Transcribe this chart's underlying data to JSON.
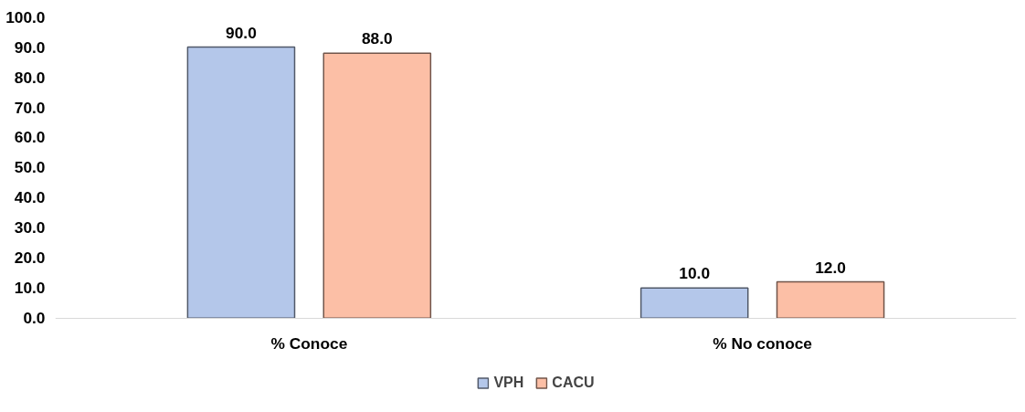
{
  "chart_data": {
    "type": "bar",
    "categories": [
      "% Conoce",
      "% No conoce"
    ],
    "series": [
      {
        "name": "VPH",
        "color": "#b4c7ea",
        "values": [
          90,
          10
        ],
        "value_labels": [
          "90.0",
          "10.0"
        ]
      },
      {
        "name": "CACU",
        "color": "#fcbfa6",
        "values": [
          88,
          12
        ],
        "value_labels": [
          "88.0",
          "12.0"
        ]
      }
    ],
    "ylim": [
      0,
      100
    ],
    "yticks": [
      {
        "value": 0,
        "label": "0.0"
      },
      {
        "value": 10,
        "label": "10.0"
      },
      {
        "value": 20,
        "label": "20.0"
      },
      {
        "value": 30,
        "label": "30.0"
      },
      {
        "value": 40,
        "label": "40.0"
      },
      {
        "value": 50,
        "label": "50.0"
      },
      {
        "value": 60,
        "label": "60.0"
      },
      {
        "value": 70,
        "label": "70.0"
      },
      {
        "value": 80,
        "label": "80.0"
      },
      {
        "value": 90,
        "label": "90.0"
      },
      {
        "value": 100,
        "label": "100.0"
      }
    ],
    "grid": false,
    "legend": "bottom"
  }
}
